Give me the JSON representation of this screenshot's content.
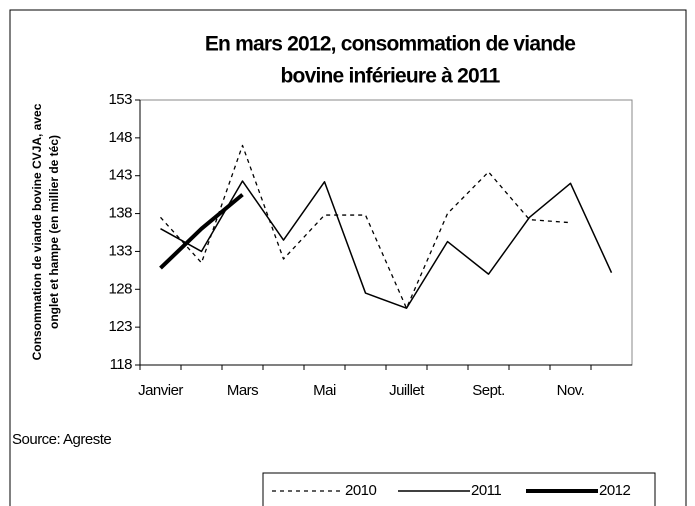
{
  "chart_data": {
    "type": "line",
    "title": [
      "En mars 2012,  consommation  de viande",
      "bovine inférieure à 2011"
    ],
    "y_label": [
      "Consommation de viande bovine CVJA, avec",
      "onglet et hampe (en millier de téc)"
    ],
    "source": "Source: Agreste",
    "categories": [
      "Janvier",
      null,
      "Mars",
      null,
      "Mai",
      null,
      "Juillet",
      null,
      "Sept.",
      null,
      "Nov.",
      null
    ],
    "series": [
      {
        "name": "2010",
        "color": "#000000",
        "line_style": "dashed",
        "line_width": 1.3,
        "values": [
          137.5,
          131.5,
          147,
          132,
          137.8,
          137.8,
          125.5,
          138,
          143.5,
          137.2,
          136.8,
          null
        ]
      },
      {
        "name": "2011",
        "color": "#000000",
        "line_style": "solid",
        "line_width": 1.5,
        "values": [
          136,
          133,
          142.3,
          134.5,
          142.2,
          127.5,
          125.5,
          134.3,
          130,
          137.5,
          142,
          130.2
        ]
      },
      {
        "name": "2012",
        "color": "#000000",
        "line_style": "solid",
        "line_width": 4,
        "values": [
          130.8,
          136,
          140.5,
          null,
          null,
          null,
          null,
          null,
          null,
          null,
          null,
          null
        ]
      }
    ],
    "ylim": [
      118,
      153
    ],
    "yticks": [
      118,
      123,
      128,
      133,
      138,
      143,
      148,
      153
    ],
    "grid": false
  }
}
